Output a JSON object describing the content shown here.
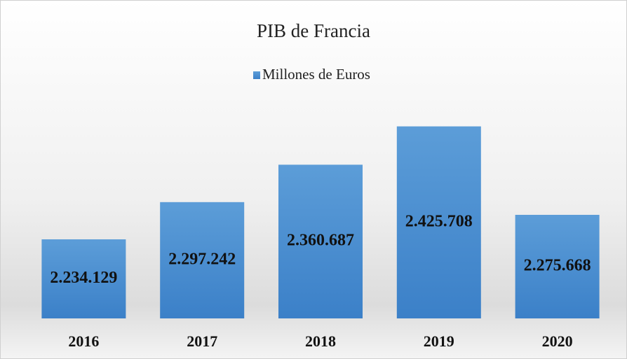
{
  "chart_data": {
    "type": "bar",
    "title": "PIB de Francia",
    "categories": [
      "2016",
      "2017",
      "2018",
      "2019",
      "2020"
    ],
    "series": [
      {
        "name": "Millones de Euros",
        "color": "#4a8fd3",
        "values": [
          2234129,
          2297242,
          2360687,
          2425708,
          2275668
        ],
        "value_labels": [
          "2.234.129",
          "2.297.242",
          "2.360.687",
          "2.425.708",
          "2.275.668"
        ]
      }
    ],
    "ylim": [
      2100000,
      2500000
    ],
    "legend": "top"
  }
}
